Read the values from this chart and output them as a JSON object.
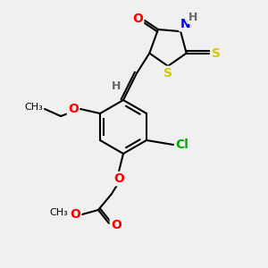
{
  "bg_color": "#f0f0f0",
  "bond_color": "#000000",
  "atom_colors": {
    "O": "#ff0000",
    "N": "#0000ff",
    "S": "#cccc00",
    "Cl": "#00aa00",
    "H": "#666666",
    "C": "#000000"
  },
  "font_size": 9,
  "bold_font_size": 9
}
